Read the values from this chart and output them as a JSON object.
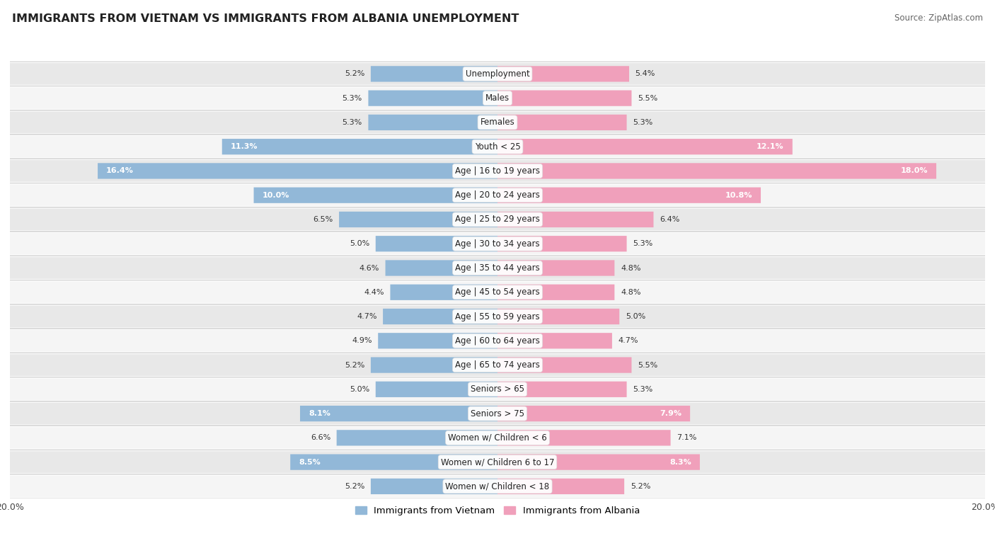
{
  "title": "IMMIGRANTS FROM VIETNAM VS IMMIGRANTS FROM ALBANIA UNEMPLOYMENT",
  "source": "Source: ZipAtlas.com",
  "categories": [
    "Unemployment",
    "Males",
    "Females",
    "Youth < 25",
    "Age | 16 to 19 years",
    "Age | 20 to 24 years",
    "Age | 25 to 29 years",
    "Age | 30 to 34 years",
    "Age | 35 to 44 years",
    "Age | 45 to 54 years",
    "Age | 55 to 59 years",
    "Age | 60 to 64 years",
    "Age | 65 to 74 years",
    "Seniors > 65",
    "Seniors > 75",
    "Women w/ Children < 6",
    "Women w/ Children 6 to 17",
    "Women w/ Children < 18"
  ],
  "vietnam_values": [
    5.2,
    5.3,
    5.3,
    11.3,
    16.4,
    10.0,
    6.5,
    5.0,
    4.6,
    4.4,
    4.7,
    4.9,
    5.2,
    5.0,
    8.1,
    6.6,
    8.5,
    5.2
  ],
  "albania_values": [
    5.4,
    5.5,
    5.3,
    12.1,
    18.0,
    10.8,
    6.4,
    5.3,
    4.8,
    4.8,
    5.0,
    4.7,
    5.5,
    5.3,
    7.9,
    7.1,
    8.3,
    5.2
  ],
  "vietnam_color": "#92b8d8",
  "albania_color": "#f0a0bb",
  "vietnam_label": "Immigrants from Vietnam",
  "albania_label": "Immigrants from Albania",
  "max_value": 20.0,
  "row_colors": [
    "#e8e8e8",
    "#f5f5f5"
  ],
  "title_fontsize": 11.5,
  "label_fontsize": 8.5,
  "value_fontsize": 8.0,
  "source_fontsize": 8.5
}
